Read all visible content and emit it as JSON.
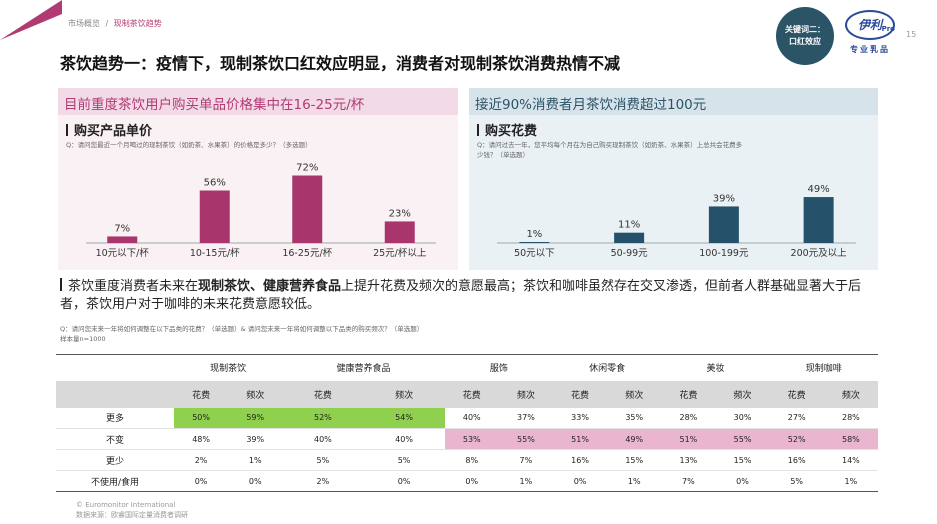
{
  "header": {
    "breadcrumb_parent": "市场概览",
    "breadcrumb_sep": "/",
    "breadcrumb_current": "现制茶饮趋势",
    "badge_line1": "关键词二：",
    "badge_line2": "口红效应",
    "logo_text": "伊利",
    "logo_pro": "Pro",
    "logo_sub": "专业乳品",
    "page_number": "15",
    "accent_pink": "#b23a73",
    "accent_teal": "#2b5466"
  },
  "title": "茶饮趋势一：疫情下，现制茶饮口红效应明显，消费者对现制茶饮消费热情不减",
  "left_panel": {
    "heading": "目前重度茶饮用户购买单品价格集中在16-25元/杯",
    "subtitle": "购买产品单价",
    "question": "Q：请问您最近一个月喝过的现制茶饮（如奶茶、水果茶）的价格是多少？（多选题）"
  },
  "right_panel": {
    "heading": "接近90%消费者月茶饮消费超过100元",
    "subtitle": "购买花费",
    "question_line1": "Q：请问过去一年，您平均每个月在为自己购买现制茶饮（如奶茶、水果茶）上总共会花费多",
    "question_line2": "少钱？（单选题）"
  },
  "chart_data": [
    {
      "type": "bar",
      "title": "购买产品单价",
      "categories": [
        "10元以下/杯",
        "10-15元/杯",
        "16-25元/杯",
        "25元/杯以上"
      ],
      "values": [
        7,
        56,
        72,
        23
      ],
      "value_labels": [
        "7%",
        "56%",
        "72%",
        "23%"
      ],
      "ylim": [
        0,
        80
      ],
      "color": "#a8356b"
    },
    {
      "type": "bar",
      "title": "购买花费",
      "categories": [
        "50元以下",
        "50-99元",
        "100-199元",
        "200元及以上"
      ],
      "values": [
        1,
        11,
        39,
        49
      ],
      "value_labels": [
        "1%",
        "11%",
        "39%",
        "49%"
      ],
      "ylim": [
        0,
        80
      ],
      "color": "#25526a"
    }
  ],
  "body": {
    "text_1": "茶饮重度消费者未来在",
    "bold_1": "现制茶饮、健康营养食品",
    "text_2": "上提升花费及频次的意愿最高；茶饮和咖啡虽然存在交叉渗透，但前者人群基础显著大于后者，茶饮用户对于咖啡的未来花费意愿较低。",
    "question": "Q：请问您未来一年将如何调整在以下品类的花费？（单选题）& 请问您未来一年将如何调整以下品类的购买频次？（单选题）",
    "sample": "样本量n=1000"
  },
  "table": {
    "groups": [
      "现制茶饮",
      "健康营养食品",
      "服饰",
      "休闲零食",
      "美妆",
      "现制咖啡"
    ],
    "sub_headers": [
      "花费",
      "频次"
    ],
    "rows": [
      {
        "label": "更多",
        "cells": [
          "50%",
          "59%",
          "52%",
          "54%",
          "40%",
          "37%",
          "33%",
          "35%",
          "28%",
          "30%",
          "27%",
          "28%"
        ]
      },
      {
        "label": "不变",
        "cells": [
          "48%",
          "39%",
          "40%",
          "40%",
          "53%",
          "55%",
          "51%",
          "49%",
          "51%",
          "55%",
          "52%",
          "58%"
        ]
      },
      {
        "label": "更少",
        "cells": [
          "2%",
          "1%",
          "5%",
          "5%",
          "8%",
          "7%",
          "16%",
          "15%",
          "13%",
          "15%",
          "16%",
          "14%"
        ]
      },
      {
        "label": "不使用/食用",
        "cells": [
          "0%",
          "0%",
          "2%",
          "0%",
          "0%",
          "1%",
          "0%",
          "1%",
          "7%",
          "0%",
          "5%",
          "1%"
        ]
      }
    ],
    "highlight_green": "#8fd14f",
    "highlight_pink": "#eab6cf"
  },
  "footer": {
    "copyright": "© Euromonitor International",
    "source": "数据来源：欧睿国际定量消费者调研"
  }
}
